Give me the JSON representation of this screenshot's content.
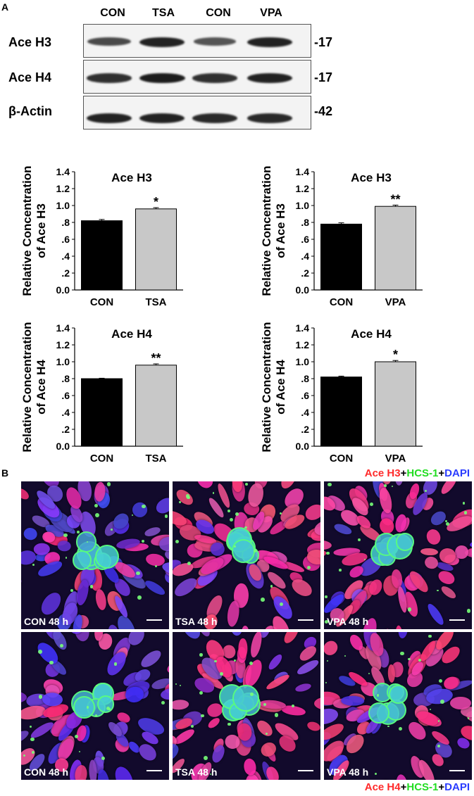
{
  "panel_a_letter": "A",
  "panel_b_letter": "B",
  "blot": {
    "columns": [
      "CON",
      "TSA",
      "CON",
      "VPA"
    ],
    "rows": [
      {
        "label": "Ace H3",
        "mw": "-17",
        "intensities": [
          0.55,
          0.85,
          0.45,
          0.85
        ]
      },
      {
        "label": "Ace H4",
        "mw": "-17",
        "intensities": [
          0.75,
          0.9,
          0.75,
          0.85
        ]
      },
      {
        "label": "β-Actin",
        "mw": "-42",
        "intensities": [
          0.85,
          0.85,
          0.8,
          0.8
        ]
      }
    ]
  },
  "y_axis_label_line1": "Relative Concentration",
  "chart_data": [
    {
      "type": "bar",
      "title": "Ace H3",
      "categories": [
        "CON",
        "TSA"
      ],
      "values": [
        0.82,
        0.96
      ],
      "errors": [
        0.015,
        0.015
      ],
      "colors": [
        "#000000",
        "#c8c8c8"
      ],
      "significance": "*",
      "ylabel": "of Ace H3",
      "ylim": [
        0,
        1.4
      ],
      "yticks": [
        "0.0",
        ".2",
        ".4",
        ".6",
        ".8",
        "1.0",
        "1.2",
        "1.4"
      ]
    },
    {
      "type": "bar",
      "title": "Ace H3",
      "categories": [
        "CON",
        "VPA"
      ],
      "values": [
        0.78,
        0.99
      ],
      "errors": [
        0.015,
        0.015
      ],
      "colors": [
        "#000000",
        "#c8c8c8"
      ],
      "significance": "**",
      "ylabel": "of Ace H3",
      "ylim": [
        0,
        1.4
      ],
      "yticks": [
        "0.0",
        ".2",
        ".4",
        ".6",
        ".8",
        "1.0",
        "1.2",
        "1.4"
      ]
    },
    {
      "type": "bar",
      "title": "Ace H4",
      "categories": [
        "CON",
        "TSA"
      ],
      "values": [
        0.8,
        0.96
      ],
      "errors": [
        0.005,
        0.015
      ],
      "colors": [
        "#000000",
        "#c8c8c8"
      ],
      "significance": "**",
      "ylabel": "of Ace H4",
      "ylim": [
        0,
        1.4
      ],
      "yticks": [
        "0.0",
        ".2",
        ".4",
        ".6",
        ".8",
        "1.0",
        "1.2",
        "1.4"
      ]
    },
    {
      "type": "bar",
      "title": "Ace H4",
      "categories": [
        "CON",
        "VPA"
      ],
      "values": [
        0.82,
        1.0
      ],
      "errors": [
        0.01,
        0.015
      ],
      "colors": [
        "#000000",
        "#c8c8c8"
      ],
      "significance": "*",
      "ylabel": "of Ace H4",
      "ylim": [
        0,
        1.4
      ],
      "yticks": [
        "0.0",
        ".2",
        ".4",
        ".6",
        ".8",
        "1.0",
        "1.2",
        "1.4"
      ]
    }
  ],
  "legend_top": [
    {
      "text": "Ace H3",
      "color": "#ff2a2a"
    },
    {
      "text": "+",
      "color": "#000000"
    },
    {
      "text": "HCS-1",
      "color": "#22dd22"
    },
    {
      "text": "+",
      "color": "#000000"
    },
    {
      "text": "DAPI",
      "color": "#2a3cff"
    }
  ],
  "legend_bottom": [
    {
      "text": "Ace H4",
      "color": "#ff2a2a"
    },
    {
      "text": "+",
      "color": "#000000"
    },
    {
      "text": "HCS-1",
      "color": "#22dd22"
    },
    {
      "text": "+",
      "color": "#000000"
    },
    {
      "text": "DAPI",
      "color": "#2a3cff"
    }
  ],
  "micrographs": [
    {
      "label": "CON 48 h",
      "red_level": 0.15
    },
    {
      "label": "TSA 48 h",
      "red_level": 0.85
    },
    {
      "label": "VPA 48 h",
      "red_level": 0.75
    },
    {
      "label": "CON 48 h",
      "red_level": 0.25
    },
    {
      "label": "TSA 48 h",
      "red_level": 0.8
    },
    {
      "label": "VPA 48 h",
      "red_level": 0.75
    }
  ]
}
